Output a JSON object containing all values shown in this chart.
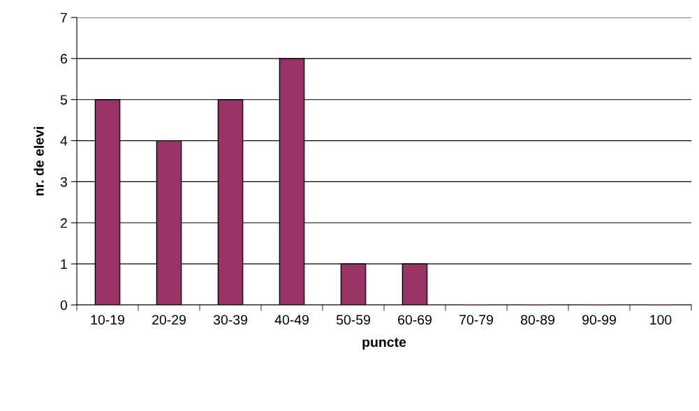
{
  "chart_data": {
    "type": "bar",
    "categories": [
      "10-19",
      "20-29",
      "30-39",
      "40-49",
      "50-59",
      "60-69",
      "70-79",
      "80-89",
      "90-99",
      "100"
    ],
    "values": [
      5,
      4,
      5,
      6,
      1,
      1,
      0,
      0,
      0,
      0
    ],
    "color": "#993366",
    "xlabel": "puncte",
    "ylabel": "nr. de elevi",
    "ylim": [
      0,
      7
    ],
    "yticks": [
      0,
      1,
      2,
      3,
      4,
      5,
      6,
      7
    ],
    "grid": "y"
  }
}
